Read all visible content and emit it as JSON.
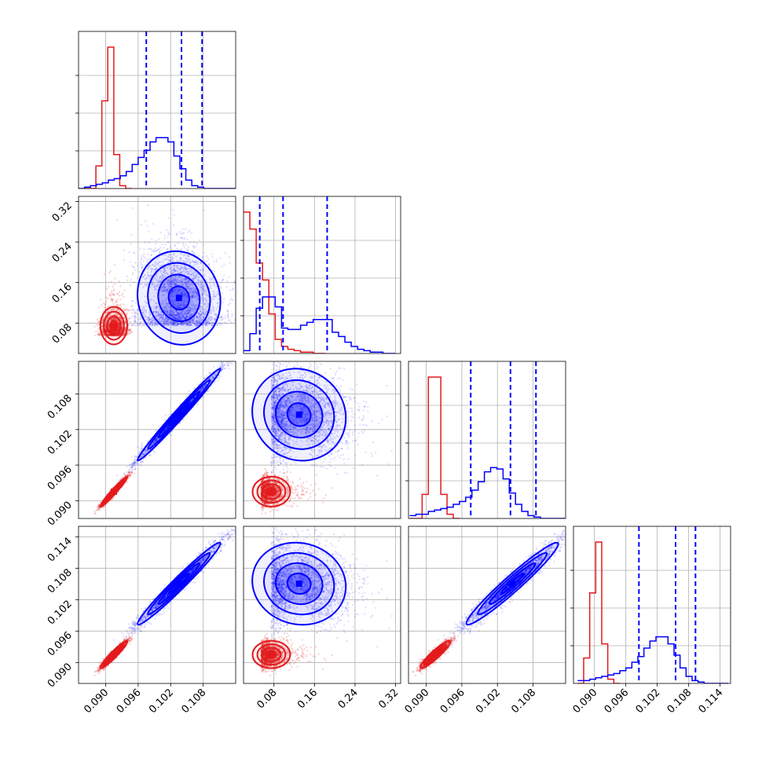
{
  "chart_data": {
    "type": "corner",
    "colors": {
      "red": "#e41a1c",
      "blue": "#0000ff",
      "blue_fill": "#3333ff",
      "red_fill": "#ff4d4d"
    },
    "params": [
      {
        "range": [
          0.085,
          0.114
        ],
        "ticks": [
          "0.090",
          "0.096",
          "0.102",
          "0.108"
        ],
        "tick_values": [
          0.09,
          0.096,
          0.102,
          0.108
        ]
      },
      {
        "range": [
          0.02,
          0.33
        ],
        "ticks": [
          "0.08",
          "0.16",
          "0.24",
          "0.32"
        ],
        "tick_values": [
          0.08,
          0.16,
          0.24,
          0.32
        ]
      },
      {
        "range": [
          0.087,
          0.1135
        ],
        "ticks": [
          "0.090",
          "0.096",
          "0.102",
          "0.108"
        ],
        "tick_values": [
          0.09,
          0.096,
          0.102,
          0.108
        ]
      },
      {
        "range": [
          0.086,
          0.116
        ],
        "ticks": [
          "0.090",
          "0.096",
          "0.102",
          "0.108",
          "0.114"
        ],
        "tick_values": [
          0.09,
          0.096,
          0.102,
          0.108,
          0.114
        ]
      }
    ],
    "diagonal": [
      {
        "blue_quantiles": [
          0.0975,
          0.104,
          0.1078
        ],
        "red_steps": {
          "start": 0.086,
          "width": 0.0011,
          "heights": [
            0,
            0,
            0.16,
            0.62,
            1.0,
            0.24,
            0.02,
            0
          ]
        },
        "blue_steps": {
          "start": 0.085,
          "width": 0.0011,
          "heights": [
            0,
            0.01,
            0.02,
            0.03,
            0.04,
            0.06,
            0.07,
            0.09,
            0.12,
            0.17,
            0.22,
            0.27,
            0.33,
            0.36,
            0.36,
            0.33,
            0.23,
            0.14,
            0.06,
            0.02,
            0.01,
            0,
            0,
            0,
            0,
            0,
            0
          ]
        }
      },
      {
        "blue_quantiles": [
          0.052,
          0.098,
          0.185
        ],
        "red_steps": {
          "start": 0.02,
          "width": 0.0125,
          "heights": [
            1.0,
            0.88,
            0.64,
            0.52,
            0.28,
            0.1,
            0.05,
            0.03,
            0.02,
            0.01,
            0.01,
            0,
            0
          ]
        },
        "blue_steps": {
          "start": 0.02,
          "width": 0.0125,
          "heights": [
            0.02,
            0.14,
            0.32,
            0.4,
            0.4,
            0.33,
            0.18,
            0.17,
            0.17,
            0.2,
            0.22,
            0.24,
            0.24,
            0.24,
            0.15,
            0.12,
            0.08,
            0.05,
            0.03,
            0.02,
            0.01,
            0.01,
            0,
            0
          ]
        }
      },
      {
        "blue_quantiles": [
          0.0975,
          0.1042,
          0.1085
        ],
        "red_steps": {
          "start": 0.0872,
          "width": 0.00105,
          "heights": [
            0,
            0,
            0.17,
            1.0,
            1.0,
            0.17,
            0.03,
            0
          ]
        },
        "blue_steps": {
          "start": 0.0872,
          "width": 0.00105,
          "heights": [
            0.02,
            0.03,
            0.03,
            0.05,
            0.06,
            0.07,
            0.08,
            0.1,
            0.12,
            0.15,
            0.2,
            0.26,
            0.33,
            0.36,
            0.35,
            0.28,
            0.18,
            0.1,
            0.05,
            0.02,
            0.01,
            0,
            0,
            0,
            0
          ]
        }
      },
      {
        "blue_quantiles": [
          0.0985,
          0.1055,
          0.1093
        ],
        "red_steps": {
          "start": 0.0868,
          "width": 0.00115,
          "heights": [
            0,
            0.18,
            0.64,
            1.0,
            0.28,
            0.03,
            0
          ]
        },
        "blue_steps": {
          "start": 0.0868,
          "width": 0.00115,
          "heights": [
            0.02,
            0.02,
            0.03,
            0.04,
            0.05,
            0.06,
            0.07,
            0.09,
            0.11,
            0.15,
            0.19,
            0.25,
            0.3,
            0.33,
            0.33,
            0.28,
            0.2,
            0.11,
            0.05,
            0.02,
            0.01,
            0,
            0,
            0,
            0
          ]
        }
      }
    ]
  }
}
